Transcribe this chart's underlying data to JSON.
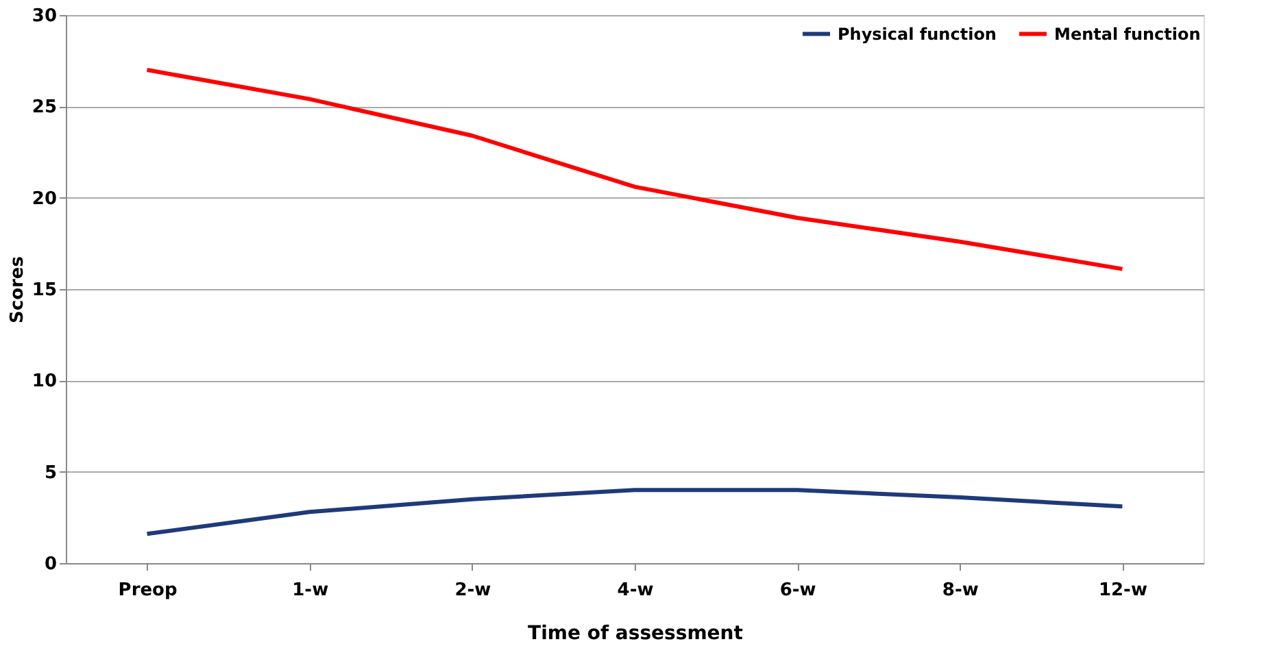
{
  "chart_data": {
    "type": "line",
    "xlabel": "Time of assessment",
    "ylabel": "Scores",
    "categories": [
      "Preop",
      "1-w",
      "2-w",
      "4-w",
      "6-w",
      "8-w",
      "12-w"
    ],
    "series": [
      {
        "name": "Physical function",
        "color": "#1f3a7a",
        "values": [
          1.6,
          2.8,
          3.5,
          4.0,
          4.0,
          3.6,
          3.1
        ]
      },
      {
        "name": "Mental function",
        "color": "#ff0000",
        "values": [
          27.0,
          25.4,
          23.4,
          20.6,
          18.9,
          17.6,
          16.1
        ]
      }
    ],
    "ylim": [
      0,
      30
    ],
    "yticks": [
      0,
      5,
      10,
      15,
      20,
      25,
      30
    ],
    "grid": "y",
    "legend": "top right",
    "marker": "none",
    "line_style": "solid"
  }
}
